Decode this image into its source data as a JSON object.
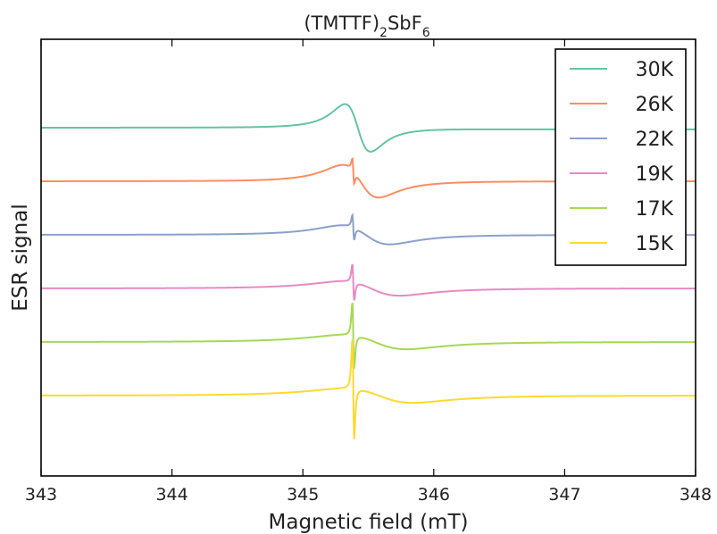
{
  "chart_data": {
    "type": "line",
    "title": "(TMTTF)",
    "title_sub1": "2",
    "title_mid": "SbF",
    "title_sub2": "6",
    "xlabel": "Magnetic field (mT)",
    "ylabel": "ESR signal",
    "xlim": [
      343,
      348
    ],
    "x_ticks": [
      "343",
      "344",
      "345",
      "346",
      "347",
      "348"
    ],
    "y_ticks_shown": false,
    "grid": false,
    "legend_position": "top-right",
    "series": [
      {
        "name": "30K",
        "color": "#66c2a5",
        "baseline": 0.0,
        "left_level": 0.0,
        "right_level": -0.03,
        "broad_amp": 1.05,
        "broad_center": 345.42,
        "broad_width": 0.17,
        "sharp_amp": 0.0,
        "sharp_center": 345.385,
        "sharp_width": 0.01
      },
      {
        "name": "26K",
        "color": "#fc8d62",
        "baseline": -1.0,
        "left_level": -1.0,
        "right_level": -1.0,
        "broad_amp": 0.72,
        "broad_center": 345.44,
        "broad_width": 0.24,
        "sharp_amp": 0.33,
        "sharp_center": 345.385,
        "sharp_width": 0.012
      },
      {
        "name": "22K",
        "color": "#8da0cb",
        "baseline": -2.0,
        "left_level": -2.0,
        "right_level": -2.0,
        "broad_amp": 0.42,
        "broad_center": 345.48,
        "broad_width": 0.32,
        "sharp_amp": 0.35,
        "sharp_center": 345.385,
        "sharp_width": 0.012
      },
      {
        "name": "19K",
        "color": "#e78ac3",
        "baseline": -3.0,
        "left_level": -3.0,
        "right_level": -3.0,
        "broad_amp": 0.32,
        "broad_center": 345.52,
        "broad_width": 0.38,
        "sharp_amp": 0.52,
        "sharp_center": 345.385,
        "sharp_width": 0.012
      },
      {
        "name": "17K",
        "color": "#a6d854",
        "baseline": -4.0,
        "left_level": -4.0,
        "right_level": -4.0,
        "broad_amp": 0.32,
        "broad_center": 345.55,
        "broad_width": 0.42,
        "sharp_amp": 0.95,
        "sharp_center": 345.385,
        "sharp_width": 0.012
      },
      {
        "name": "15K",
        "color": "#ffd92f",
        "baseline": -5.0,
        "left_level": -5.0,
        "right_level": -5.0,
        "broad_amp": 0.32,
        "broad_center": 345.58,
        "broad_width": 0.45,
        "sharp_amp": 1.45,
        "sharp_center": 345.385,
        "sharp_width": 0.012
      }
    ],
    "ylim": [
      -6.5,
      1.65
    ]
  }
}
